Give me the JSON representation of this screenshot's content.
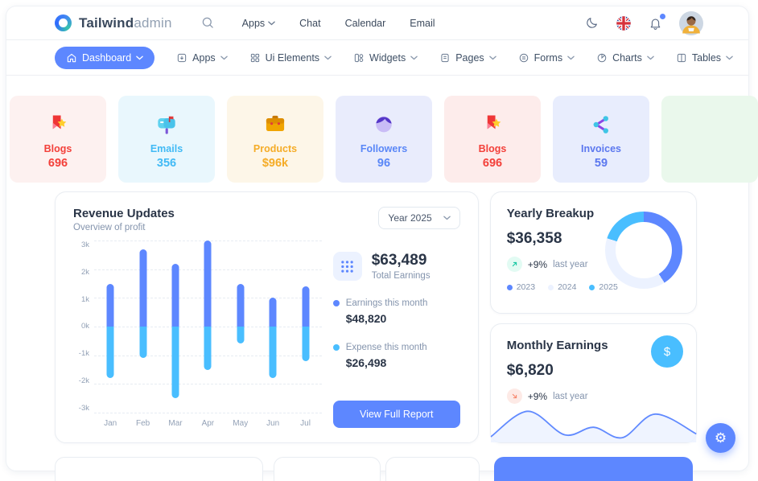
{
  "header": {
    "brand_bold": "Tailwind",
    "brand_light": "admin",
    "nav": [
      {
        "label": "Apps",
        "chevron": true
      },
      {
        "label": "Chat",
        "chevron": false
      },
      {
        "label": "Calendar",
        "chevron": false
      },
      {
        "label": "Email",
        "chevron": false
      }
    ],
    "icons": [
      "search-icon",
      "moon-icon",
      "uk-flag-icon",
      "bell-icon",
      "avatar"
    ]
  },
  "menubar": {
    "items": [
      {
        "label": "Dashboard",
        "icon": "home-icon",
        "active": true,
        "chevron": true
      },
      {
        "label": "Apps",
        "icon": "apps-box-icon",
        "active": false,
        "chevron": true
      },
      {
        "label": "Ui Elements",
        "icon": "grid-icon",
        "active": false,
        "chevron": true
      },
      {
        "label": "Widgets",
        "icon": "widgets-icon",
        "active": false,
        "chevron": true
      },
      {
        "label": "Pages",
        "icon": "pages-icon",
        "active": false,
        "chevron": true
      },
      {
        "label": "Forms",
        "icon": "forms-icon",
        "active": false,
        "chevron": true
      },
      {
        "label": "Charts",
        "icon": "pie-chart-icon",
        "active": false,
        "chevron": true
      },
      {
        "label": "Tables",
        "icon": "table-icon",
        "active": false,
        "chevron": true
      }
    ]
  },
  "stat_cards": [
    {
      "label": "Blogs",
      "value": "696",
      "icon": "bookmark-star-icon",
      "bg": "#fdf1f0",
      "color": "#f3403a",
      "partial": "left"
    },
    {
      "label": "Emails",
      "value": "356",
      "icon": "mailbox-icon",
      "bg": "#e9f7fd",
      "color": "#41baf5",
      "partial": ""
    },
    {
      "label": "Products",
      "value": "$96k",
      "icon": "briefcase-icon",
      "bg": "#fdf6e8",
      "color": "#f5ac27",
      "partial": ""
    },
    {
      "label": "Followers",
      "value": "96",
      "icon": "person-icon",
      "bg": "#e9ecfc",
      "color": "#5a87f7",
      "partial": ""
    },
    {
      "label": "Blogs",
      "value": "696",
      "icon": "bookmark-star-icon",
      "bg": "#fdeceb",
      "color": "#f3403a",
      "partial": ""
    },
    {
      "label": "Invoices",
      "value": "59",
      "icon": "share-network-icon",
      "bg": "#e8edfd",
      "color": "#5c78ef",
      "partial": ""
    },
    {
      "label": "",
      "value": "",
      "icon": "",
      "bg": "#eaf8ec",
      "color": "#3dd9c5",
      "partial": "right"
    }
  ],
  "revenue": {
    "title": "Revenue Updates",
    "subtitle": "Overview of profit",
    "year_select": "Year 2025",
    "total_value": "$63,489",
    "total_label": "Total Earnings",
    "legend": [
      {
        "label": "Earnings this month",
        "value": "$48,820",
        "color": "#5d87ff"
      },
      {
        "label": "Expense this month",
        "value": "$26,498",
        "color": "#49beff"
      }
    ],
    "button": "View Full Report"
  },
  "yearly": {
    "title": "Yearly Breakup",
    "value": "$36,358",
    "delta": "+9%",
    "delta_label": "last year",
    "legend": [
      {
        "label": "2023",
        "color": "#5d87ff"
      },
      {
        "label": "2024",
        "color": "#ecf2ff"
      },
      {
        "label": "2025",
        "color": "#49beff"
      }
    ]
  },
  "monthly": {
    "title": "Monthly Earnings",
    "value": "$6,820",
    "delta": "+9%",
    "delta_label": "last year"
  },
  "chart_data": [
    {
      "type": "bar",
      "title": "Revenue Updates",
      "categories": [
        "Jan",
        "Feb",
        "Mar",
        "Apr",
        "May",
        "Jun",
        "Jul"
      ],
      "series": [
        {
          "name": "Earnings this month",
          "color": "#5d87ff",
          "values": [
            1500,
            2700,
            2200,
            3000,
            1500,
            1000,
            1400
          ]
        },
        {
          "name": "Expense this month",
          "color": "#49beff",
          "values": [
            -1800,
            -1100,
            -2500,
            -1500,
            -600,
            -1800,
            -1200
          ]
        }
      ],
      "ylim": [
        -3000,
        3000
      ],
      "yticks": [
        "3k",
        "2k",
        "1k",
        "0k",
        "-1k",
        "-2k",
        "-3k"
      ],
      "grid": "dashed-horizontal",
      "legend_position": "right-panel"
    },
    {
      "type": "pie",
      "title": "Yearly Breakup",
      "labels": [
        "2023",
        "2024",
        "2025"
      ],
      "values": [
        41,
        39,
        20
      ],
      "colors": [
        "#5d87ff",
        "#ecf2ff",
        "#49beff"
      ],
      "style": "donut"
    },
    {
      "type": "area",
      "title": "Monthly Earnings",
      "line_color": "#618aff",
      "fill_color": "rgba(236,242,255,0.85)",
      "points": [
        [
          0,
          40
        ],
        [
          45,
          13
        ],
        [
          90,
          38
        ],
        [
          125,
          30
        ],
        [
          160,
          41
        ],
        [
          200,
          16
        ],
        [
          250,
          37
        ]
      ]
    }
  ],
  "colors": {
    "primary": "#5d87ff",
    "secondary": "#49beff",
    "text_dark": "#2a3547",
    "text_muted": "#8494ad"
  }
}
